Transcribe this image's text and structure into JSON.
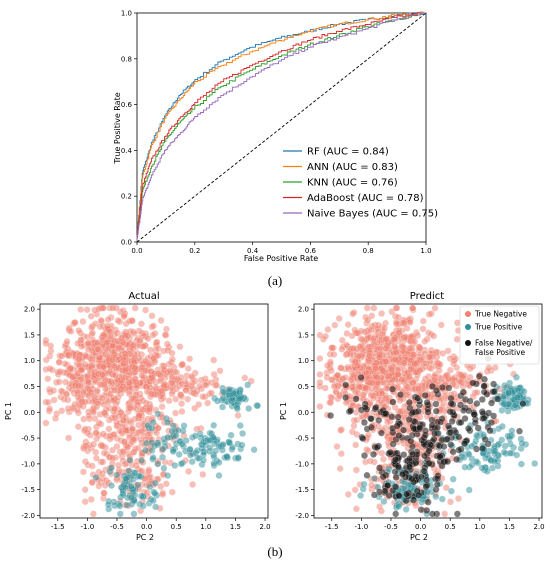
{
  "figure": {
    "caption_a": "(a)",
    "caption_b": "(b)"
  },
  "chart_data": [
    {
      "type": "line",
      "xlabel": "False Positive Rate",
      "ylabel": "True Positive Rate",
      "xlim": [
        0,
        1
      ],
      "ylim": [
        0,
        1
      ],
      "xticks": [
        "0.0",
        "0.2",
        "0.4",
        "0.6",
        "0.8",
        "1.0"
      ],
      "yticks": [
        "0.0",
        "0.2",
        "0.4",
        "0.6",
        "0.8",
        "1.0"
      ],
      "legend_position": "lower-right",
      "grid": false,
      "series": [
        {
          "name": "RF (AUC = 0.84)",
          "color": "#1f77b4",
          "x": [
            0,
            0.02,
            0.05,
            0.1,
            0.15,
            0.2,
            0.3,
            0.4,
            0.5,
            0.6,
            0.7,
            0.8,
            0.9,
            1.0
          ],
          "y": [
            0,
            0.3,
            0.42,
            0.55,
            0.64,
            0.7,
            0.79,
            0.85,
            0.89,
            0.92,
            0.95,
            0.97,
            0.99,
            1.0
          ]
        },
        {
          "name": "ANN (AUC = 0.83)",
          "color": "#ff7f0e",
          "x": [
            0,
            0.02,
            0.05,
            0.1,
            0.15,
            0.2,
            0.3,
            0.4,
            0.5,
            0.6,
            0.7,
            0.8,
            0.9,
            1.0
          ],
          "y": [
            0,
            0.28,
            0.41,
            0.54,
            0.62,
            0.69,
            0.77,
            0.83,
            0.88,
            0.92,
            0.95,
            0.97,
            0.99,
            1.0
          ]
        },
        {
          "name": "KNN (AUC = 0.76)",
          "color": "#2ca02c",
          "x": [
            0,
            0.02,
            0.05,
            0.1,
            0.15,
            0.2,
            0.3,
            0.4,
            0.5,
            0.6,
            0.7,
            0.8,
            0.9,
            1.0
          ],
          "y": [
            0,
            0.22,
            0.32,
            0.44,
            0.52,
            0.58,
            0.68,
            0.75,
            0.81,
            0.86,
            0.9,
            0.94,
            0.97,
            1.0
          ]
        },
        {
          "name": "AdaBoost (AUC = 0.78)",
          "color": "#d62728",
          "x": [
            0,
            0.02,
            0.05,
            0.1,
            0.15,
            0.2,
            0.3,
            0.4,
            0.5,
            0.6,
            0.7,
            0.8,
            0.9,
            1.0
          ],
          "y": [
            0,
            0.24,
            0.35,
            0.46,
            0.54,
            0.6,
            0.7,
            0.77,
            0.83,
            0.88,
            0.92,
            0.95,
            0.98,
            1.0
          ]
        },
        {
          "name": "Naive Bayes (AUC = 0.75)",
          "color": "#9467bd",
          "x": [
            0,
            0.02,
            0.05,
            0.1,
            0.15,
            0.2,
            0.3,
            0.4,
            0.5,
            0.6,
            0.7,
            0.8,
            0.9,
            1.0
          ],
          "y": [
            0,
            0.18,
            0.28,
            0.4,
            0.47,
            0.54,
            0.64,
            0.72,
            0.79,
            0.85,
            0.89,
            0.93,
            0.97,
            1.0
          ]
        },
        {
          "name": "",
          "color": "#000000",
          "style": "dashed",
          "x": [
            0,
            1
          ],
          "y": [
            0,
            1
          ]
        }
      ]
    },
    {
      "type": "scatter",
      "title": "Actual",
      "xlabel": "PC 2",
      "ylabel": "PC 1",
      "xlim": [
        -1.8,
        2.05
      ],
      "ylim": [
        -2.05,
        2.1
      ],
      "xticks": [
        "-1.5",
        "-1.0",
        "-0.5",
        "0.0",
        "0.5",
        "1.0",
        "1.5",
        "2.0"
      ],
      "yticks": [
        "-2.0",
        "-1.5",
        "-1.0",
        "-0.5",
        "0.0",
        "0.5",
        "1.0",
        "1.5",
        "2.0"
      ],
      "colors": {
        "negative": "#f08070",
        "positive": "#2f8f9a",
        "error": "#111111"
      },
      "clusters": [
        {
          "class": "negative",
          "cx": -0.55,
          "cy": 1.05,
          "sx": 0.45,
          "sy": 0.45,
          "n": 520
        },
        {
          "class": "negative",
          "cx": -1.1,
          "cy": 0.45,
          "sx": 0.3,
          "sy": 0.3,
          "n": 120
        },
        {
          "class": "negative",
          "cx": 0.4,
          "cy": 0.55,
          "sx": 0.45,
          "sy": 0.25,
          "n": 150
        },
        {
          "class": "negative",
          "cx": -0.25,
          "cy": -0.4,
          "sx": 0.45,
          "sy": 0.4,
          "n": 200
        },
        {
          "class": "negative",
          "cx": -0.3,
          "cy": -1.3,
          "sx": 0.4,
          "sy": 0.35,
          "n": 110
        },
        {
          "class": "positive",
          "cx": 1.5,
          "cy": 0.3,
          "sx": 0.12,
          "sy": 0.12,
          "n": 70
        },
        {
          "class": "positive",
          "cx": 1.05,
          "cy": -0.7,
          "sx": 0.3,
          "sy": 0.2,
          "n": 80
        },
        {
          "class": "positive",
          "cx": -0.3,
          "cy": -1.5,
          "sx": 0.25,
          "sy": 0.25,
          "n": 70
        },
        {
          "class": "positive",
          "cx": 0.3,
          "cy": -0.6,
          "sx": 0.3,
          "sy": 0.3,
          "n": 40
        }
      ]
    },
    {
      "type": "scatter",
      "title": "Predict",
      "xlabel": "PC 2",
      "ylabel": "PC 1",
      "xlim": [
        -1.8,
        2.05
      ],
      "ylim": [
        -2.05,
        2.1
      ],
      "xticks": [
        "-1.5",
        "-1.0",
        "-0.5",
        "0.0",
        "0.5",
        "1.0",
        "1.5",
        "2.0"
      ],
      "yticks": [
        "-2.0",
        "-1.5",
        "-1.0",
        "-0.5",
        "0.0",
        "0.5",
        "1.0",
        "1.5",
        "2.0"
      ],
      "legend_position": "top-right",
      "legend": [
        "True Negative",
        "True Positive",
        "False Negative/",
        "False Positive"
      ],
      "colors": {
        "negative": "#f08070",
        "positive": "#2f8f9a",
        "error": "#111111"
      },
      "clusters": [
        {
          "class": "negative",
          "cx": -0.55,
          "cy": 1.05,
          "sx": 0.45,
          "sy": 0.45,
          "n": 520
        },
        {
          "class": "negative",
          "cx": -1.1,
          "cy": 0.45,
          "sx": 0.3,
          "sy": 0.3,
          "n": 120
        },
        {
          "class": "negative",
          "cx": 0.4,
          "cy": 0.55,
          "sx": 0.45,
          "sy": 0.25,
          "n": 150
        },
        {
          "class": "negative",
          "cx": -0.25,
          "cy": -0.4,
          "sx": 0.45,
          "sy": 0.4,
          "n": 200
        },
        {
          "class": "negative",
          "cx": -0.3,
          "cy": -1.3,
          "sx": 0.4,
          "sy": 0.35,
          "n": 110
        },
        {
          "class": "positive",
          "cx": 1.55,
          "cy": 0.3,
          "sx": 0.13,
          "sy": 0.12,
          "n": 80
        },
        {
          "class": "positive",
          "cx": 1.1,
          "cy": -0.7,
          "sx": 0.3,
          "sy": 0.2,
          "n": 90
        },
        {
          "class": "positive",
          "cx": -0.2,
          "cy": -1.5,
          "sx": 0.3,
          "sy": 0.25,
          "n": 90
        },
        {
          "class": "error",
          "cx": -0.2,
          "cy": -1.1,
          "sx": 0.35,
          "sy": 0.45,
          "n": 120
        },
        {
          "class": "error",
          "cx": 0.3,
          "cy": -0.4,
          "sx": 0.4,
          "sy": 0.35,
          "n": 80
        },
        {
          "class": "error",
          "cx": -0.6,
          "cy": 0.0,
          "sx": 0.5,
          "sy": 0.4,
          "n": 60
        },
        {
          "class": "error",
          "cx": 1.0,
          "cy": 0.2,
          "sx": 0.4,
          "sy": 0.3,
          "n": 40
        }
      ]
    }
  ]
}
